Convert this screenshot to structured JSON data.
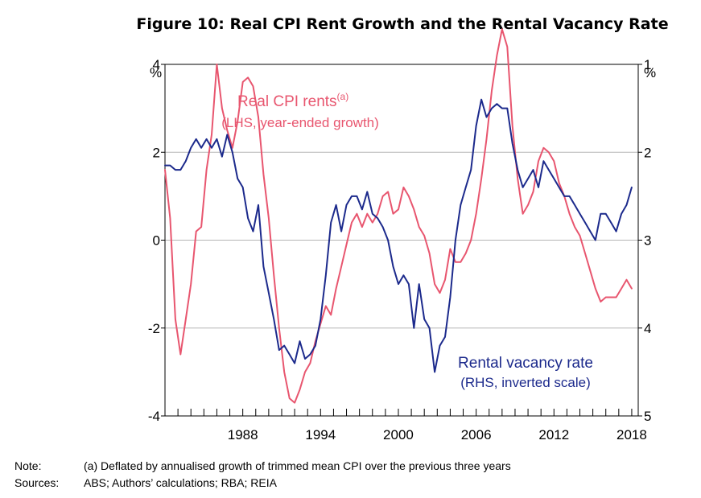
{
  "chart_data": {
    "type": "line",
    "title": "Figure 10: Real CPI Rent Growth and the Rental Vacancy Rate",
    "left_axis": {
      "unit": "%",
      "ticks": [
        "4",
        "2",
        "0",
        "-2",
        "-4"
      ],
      "ylim": [
        -4,
        4
      ]
    },
    "right_axis": {
      "unit": "%",
      "ticks": [
        "1",
        "2",
        "3",
        "4",
        "5"
      ],
      "ylim": [
        1,
        5
      ],
      "inverted": true
    },
    "x_axis": {
      "tick_labels": [
        "1988",
        "1994",
        "2000",
        "2006",
        "2012",
        "2018"
      ],
      "xlim": [
        1982,
        2018.5
      ]
    },
    "series": [
      {
        "name": "Real CPI rents",
        "superscript": "(a)",
        "sub_label": "(LHS, year-ended growth)",
        "color": "#e8566f",
        "axis": "left",
        "x": [
          1982.0,
          1982.4,
          1982.8,
          1983.2,
          1983.6,
          1984.0,
          1984.4,
          1984.8,
          1985.2,
          1985.6,
          1986.0,
          1986.4,
          1986.8,
          1987.2,
          1987.6,
          1988.0,
          1988.4,
          1988.8,
          1989.2,
          1989.6,
          1990.0,
          1990.4,
          1990.8,
          1991.2,
          1991.6,
          1992.0,
          1992.4,
          1992.8,
          1993.2,
          1993.6,
          1994.0,
          1994.4,
          1994.8,
          1995.2,
          1995.6,
          1996.0,
          1996.4,
          1996.8,
          1997.2,
          1997.6,
          1998.0,
          1998.4,
          1998.8,
          1999.2,
          1999.6,
          2000.0,
          2000.4,
          2000.8,
          2001.2,
          2001.6,
          2002.0,
          2002.4,
          2002.8,
          2003.2,
          2003.6,
          2004.0,
          2004.4,
          2004.8,
          2005.2,
          2005.6,
          2006.0,
          2006.4,
          2006.8,
          2007.2,
          2007.6,
          2008.0,
          2008.4,
          2008.8,
          2009.2,
          2009.6,
          2010.0,
          2010.4,
          2010.8,
          2011.2,
          2011.6,
          2012.0,
          2012.4,
          2012.8,
          2013.2,
          2013.6,
          2014.0,
          2014.4,
          2014.8,
          2015.2,
          2015.6,
          2016.0,
          2016.4,
          2016.8,
          2017.2,
          2017.6,
          2018.0
        ],
        "y": [
          1.6,
          0.5,
          -1.8,
          -2.6,
          -1.8,
          -1.0,
          0.2,
          0.3,
          1.6,
          2.4,
          4.0,
          3.0,
          2.5,
          2.1,
          2.7,
          3.6,
          3.7,
          3.5,
          2.8,
          1.5,
          0.5,
          -0.8,
          -2.0,
          -3.0,
          -3.6,
          -3.7,
          -3.4,
          -3.0,
          -2.8,
          -2.3,
          -1.9,
          -1.5,
          -1.7,
          -1.1,
          -0.6,
          -0.1,
          0.4,
          0.6,
          0.3,
          0.6,
          0.4,
          0.6,
          1.0,
          1.1,
          0.6,
          0.7,
          1.2,
          1.0,
          0.7,
          0.3,
          0.1,
          -0.3,
          -1.0,
          -1.2,
          -0.9,
          -0.2,
          -0.5,
          -0.5,
          -0.3,
          0.0,
          0.6,
          1.4,
          2.3,
          3.4,
          4.2,
          4.8,
          4.4,
          2.6,
          1.4,
          0.6,
          0.8,
          1.1,
          1.8,
          2.1,
          2.0,
          1.8,
          1.3,
          1.0,
          0.6,
          0.3,
          0.1,
          -0.3,
          -0.7,
          -1.1,
          -1.4,
          -1.3,
          -1.3,
          -1.3,
          -1.1,
          -0.9,
          -1.1
        ]
      },
      {
        "name": "Rental vacancy rate",
        "sub_label": "(RHS, inverted scale)",
        "color": "#1c2a8c",
        "axis": "right",
        "x": [
          1982.0,
          1982.4,
          1982.8,
          1983.2,
          1983.6,
          1984.0,
          1984.4,
          1984.8,
          1985.2,
          1985.6,
          1986.0,
          1986.4,
          1986.8,
          1987.2,
          1987.6,
          1988.0,
          1988.4,
          1988.8,
          1989.2,
          1989.6,
          1990.0,
          1990.4,
          1990.8,
          1991.2,
          1991.6,
          1992.0,
          1992.4,
          1992.8,
          1993.2,
          1993.6,
          1994.0,
          1994.4,
          1994.8,
          1995.2,
          1995.6,
          1996.0,
          1996.4,
          1996.8,
          1997.2,
          1997.6,
          1998.0,
          1998.4,
          1998.8,
          1999.2,
          1999.6,
          2000.0,
          2000.4,
          2000.8,
          2001.2,
          2001.6,
          2002.0,
          2002.4,
          2002.8,
          2003.2,
          2003.6,
          2004.0,
          2004.4,
          2004.8,
          2005.2,
          2005.6,
          2006.0,
          2006.4,
          2006.8,
          2007.2,
          2007.6,
          2008.0,
          2008.4,
          2008.8,
          2009.2,
          2009.6,
          2010.0,
          2010.4,
          2010.8,
          2011.2,
          2011.6,
          2012.0,
          2012.4,
          2012.8,
          2013.2,
          2013.6,
          2014.0,
          2014.4,
          2014.8,
          2015.2,
          2015.6,
          2016.0,
          2016.4,
          2016.8,
          2017.2,
          2017.6,
          2018.0
        ],
        "y": [
          2.15,
          2.15,
          2.2,
          2.2,
          2.1,
          1.95,
          1.85,
          1.95,
          1.85,
          1.95,
          1.85,
          2.05,
          1.8,
          2.0,
          2.3,
          2.4,
          2.75,
          2.9,
          2.6,
          3.3,
          3.6,
          3.9,
          4.25,
          4.2,
          4.3,
          4.4,
          4.15,
          4.35,
          4.3,
          4.2,
          3.9,
          3.4,
          2.8,
          2.6,
          2.9,
          2.6,
          2.5,
          2.5,
          2.65,
          2.45,
          2.7,
          2.75,
          2.85,
          3.0,
          3.3,
          3.5,
          3.4,
          3.5,
          4.0,
          3.5,
          3.9,
          4.0,
          4.5,
          4.2,
          4.1,
          3.65,
          3.0,
          2.6,
          2.4,
          2.2,
          1.7,
          1.4,
          1.6,
          1.5,
          1.45,
          1.5,
          1.5,
          1.9,
          2.2,
          2.4,
          2.3,
          2.2,
          2.4,
          2.1,
          2.2,
          2.3,
          2.4,
          2.5,
          2.5,
          2.6,
          2.7,
          2.8,
          2.9,
          3.0,
          2.7,
          2.7,
          2.8,
          2.9,
          2.7,
          2.6,
          2.4
        ]
      }
    ]
  },
  "notes": {
    "note_label": "Note:",
    "note_text": "(a) Deflated by annualised growth of trimmed mean CPI over the previous three years",
    "sources_label": "Sources:",
    "sources_text": "ABS; Authors’ calculations; RBA; REIA"
  }
}
